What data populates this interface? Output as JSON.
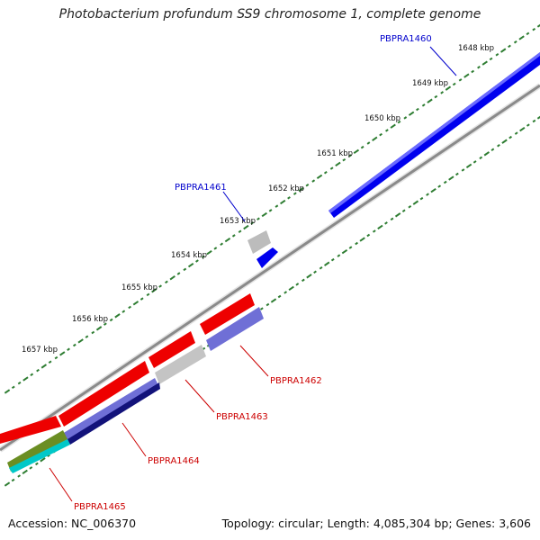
{
  "title": "Photobacterium profundum SS9 chromosome 1, complete genome",
  "footer": {
    "accession": "Accession: NC_006370",
    "summary": "Topology: circular; Length: 4,085,304 bp; Genes: 3,606"
  },
  "scale_labels": [
    "1648 kbp",
    "1649 kbp",
    "1650 kbp",
    "1651 kbp",
    "1652 kbp",
    "1653 kbp",
    "1654 kbp",
    "1655 kbp",
    "1656 kbp",
    "1657 kbp"
  ],
  "gene_labels": [
    {
      "text": "PBPRA1460",
      "strand": "forward",
      "color": "#0000cc"
    },
    {
      "text": "PBPRA1461",
      "strand": "forward",
      "color": "#0000cc"
    },
    {
      "text": "PBPRA1462",
      "strand": "reverse",
      "color": "#cc0000"
    },
    {
      "text": "PBPRA1463",
      "strand": "reverse",
      "color": "#cc0000"
    },
    {
      "text": "PBPRA1464",
      "strand": "reverse",
      "color": "#cc0000"
    },
    {
      "text": "PBPRA1465",
      "strand": "reverse",
      "color": "#cc0000"
    }
  ],
  "colors": {
    "forward_cds": "#0000ee",
    "reverse_cds": "#ee0000",
    "other_feature": "#b8b8b8",
    "backbone": "#888888",
    "cog_purple": "#6f6fd6",
    "cog_navy": "#12127a",
    "cog_olive": "#6b8e23",
    "cog_cyan": "#00c8c8",
    "tick_green": "#2e7d32"
  }
}
